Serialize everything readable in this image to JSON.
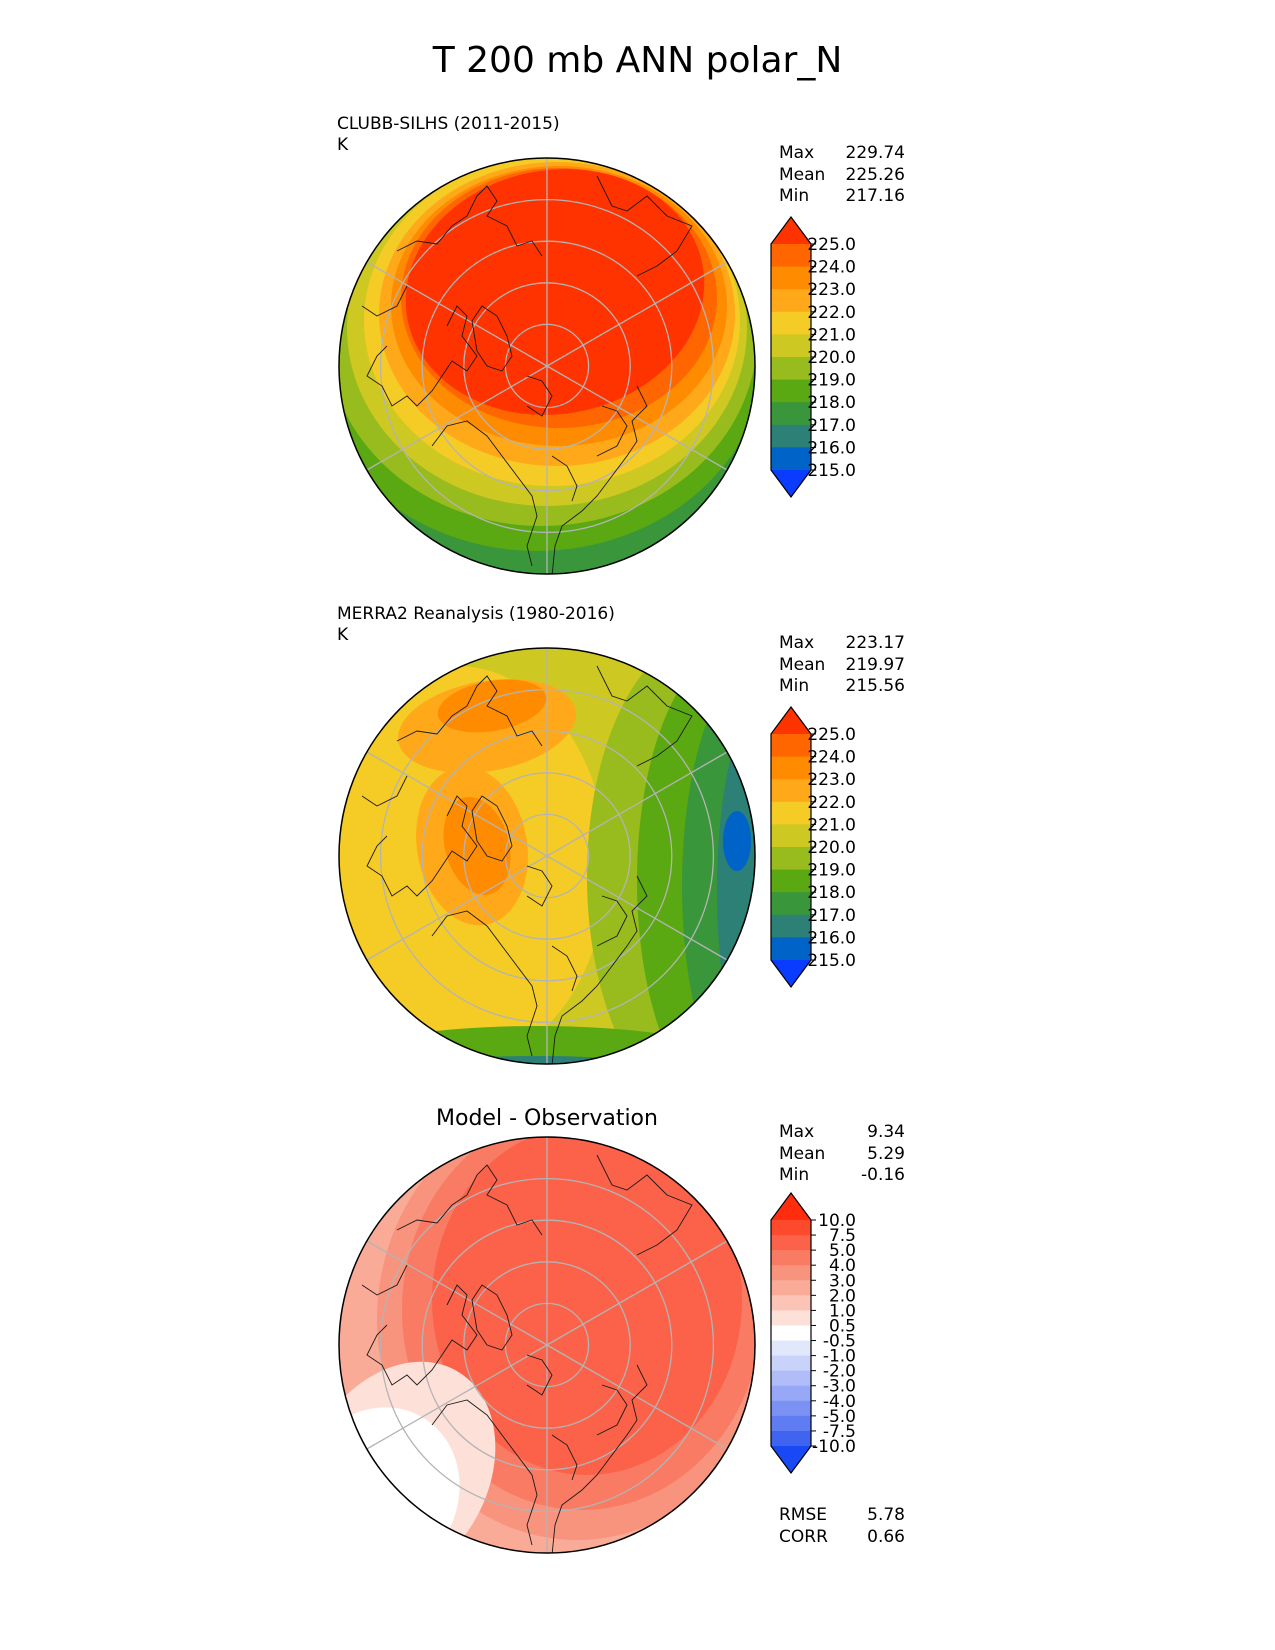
{
  "title": "T 200 mb ANN polar_N",
  "panels": [
    {
      "id": "test",
      "title": "CLUBB-SILHS (2011-2015)",
      "units": "K",
      "stats": [
        {
          "label": "Max",
          "value": "229.74"
        },
        {
          "label": "Mean",
          "value": "225.26"
        },
        {
          "label": "Min",
          "value": "217.16"
        }
      ],
      "colorbar": {
        "ticks": [
          "225.0",
          "224.0",
          "223.0",
          "222.0",
          "221.0",
          "220.0",
          "219.0",
          "218.0",
          "217.0",
          "216.0",
          "215.0"
        ],
        "colors": [
          "#ff3300",
          "#ff6600",
          "#ff8c00",
          "#ffa91a",
          "#f5cb26",
          "#cec822",
          "#98bb1d",
          "#5aa812",
          "#3a963a",
          "#2c8076",
          "#0063c8",
          "#0a3cff"
        ]
      }
    },
    {
      "id": "ref",
      "title": "MERRA2 Reanalysis (1980-2016)",
      "units": "K",
      "stats": [
        {
          "label": "Max",
          "value": "223.17"
        },
        {
          "label": "Mean",
          "value": "219.97"
        },
        {
          "label": "Min",
          "value": "215.56"
        }
      ],
      "colorbar": {
        "ticks": [
          "225.0",
          "224.0",
          "223.0",
          "222.0",
          "221.0",
          "220.0",
          "219.0",
          "218.0",
          "217.0",
          "216.0",
          "215.0"
        ],
        "colors": [
          "#ff3300",
          "#ff6600",
          "#ff8c00",
          "#ffa91a",
          "#f5cb26",
          "#cec822",
          "#98bb1d",
          "#5aa812",
          "#3a963a",
          "#2c8076",
          "#0063c8",
          "#0a3cff"
        ]
      }
    },
    {
      "id": "diff",
      "title": "Model - Observation",
      "stats": [
        {
          "label": "Max",
          "value": "9.34"
        },
        {
          "label": "Mean",
          "value": "5.29"
        },
        {
          "label": "Min",
          "value": "-0.16"
        }
      ],
      "colorbar": {
        "ticks": [
          "10.0",
          "7.5",
          "5.0",
          "4.0",
          "3.0",
          "2.0",
          "1.0",
          "0.5",
          "-0.5",
          "-1.0",
          "-2.0",
          "-3.0",
          "-4.0",
          "-5.0",
          "-7.5",
          "-10.0"
        ],
        "colors": [
          "#ff2d0e",
          "#fd4a2c",
          "#fb6249",
          "#f97b63",
          "#f8937d",
          "#f9ab98",
          "#fbc4b7",
          "#fde0d8",
          "#ffffff",
          "#e2e8fb",
          "#c9d3fa",
          "#b0bdf8",
          "#96a8f6",
          "#7b92f4",
          "#5f7cf2",
          "#4064f0",
          "#1849f5"
        ]
      },
      "extra_stats": [
        {
          "label": "RMSE",
          "value": "5.78"
        },
        {
          "label": "CORR",
          "value": "0.66"
        }
      ]
    }
  ]
}
